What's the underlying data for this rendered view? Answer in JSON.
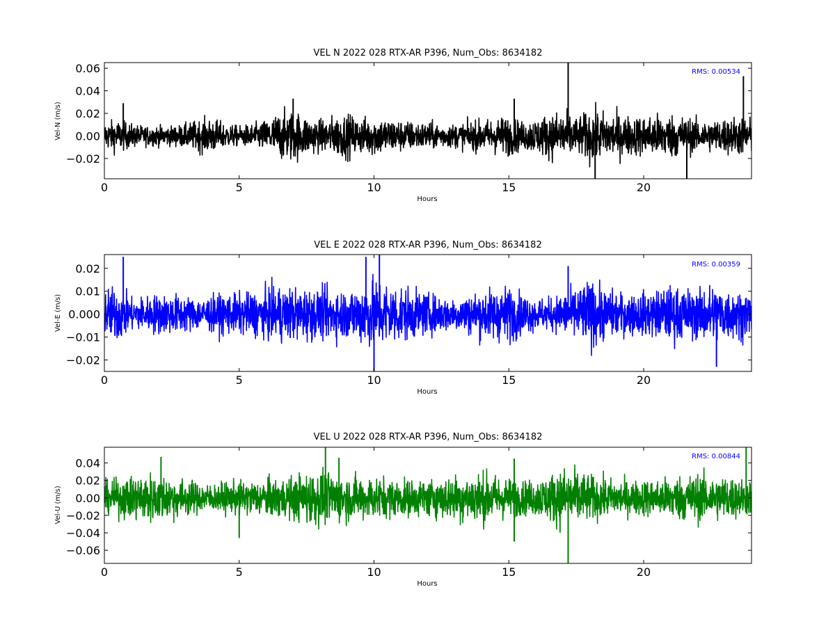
{
  "chart_data": [
    {
      "type": "line",
      "title": "VEL N 2022 028 RTX-AR  P396, Num_Obs: 8634182",
      "xlabel": "Hours",
      "ylabel": "Vel-N (m/s)",
      "xlim": [
        0,
        24
      ],
      "ylim": [
        -0.038,
        0.065
      ],
      "xticks": [
        0,
        5,
        10,
        15,
        20
      ],
      "xtick_labels": [
        "0",
        "5",
        "10",
        "15",
        "20"
      ],
      "yticks": [
        -0.02,
        0.0,
        0.02,
        0.04,
        0.06
      ],
      "ytick_labels": [
        "−0.02",
        "0.00",
        "0.02",
        "0.04",
        "0.06"
      ],
      "annotation": "RMS:  0.00534",
      "rms": 0.00534,
      "series_color": "#000000",
      "annotation_color": "#0000ff",
      "grid": false,
      "envelope": {
        "hours": [
          0,
          0.5,
          1,
          1.5,
          2,
          2.5,
          3,
          3.5,
          4,
          4.5,
          5,
          5.5,
          6,
          6.5,
          7,
          7.5,
          8,
          8.5,
          9,
          9.5,
          10,
          10.5,
          11,
          11.5,
          12,
          12.5,
          13,
          13.5,
          14,
          14.5,
          15,
          15.5,
          16,
          16.5,
          17,
          17.5,
          18,
          18.5,
          19,
          19.5,
          20,
          20.5,
          21,
          21.5,
          22,
          22.5,
          23,
          23.5,
          24
        ],
        "amplitude": [
          0.014,
          0.016,
          0.012,
          0.01,
          0.01,
          0.01,
          0.012,
          0.016,
          0.018,
          0.012,
          0.01,
          0.012,
          0.016,
          0.024,
          0.026,
          0.02,
          0.016,
          0.02,
          0.022,
          0.018,
          0.02,
          0.018,
          0.016,
          0.014,
          0.014,
          0.012,
          0.012,
          0.014,
          0.016,
          0.018,
          0.02,
          0.014,
          0.018,
          0.022,
          0.026,
          0.018,
          0.026,
          0.024,
          0.022,
          0.02,
          0.02,
          0.022,
          0.022,
          0.02,
          0.016,
          0.016,
          0.018,
          0.02,
          0.018
        ]
      },
      "spikes": [
        {
          "hour": 0.7,
          "value": 0.029
        },
        {
          "hour": 7.0,
          "value": 0.033
        },
        {
          "hour": 15.2,
          "value": 0.033
        },
        {
          "hour": 17.2,
          "value": 0.065
        },
        {
          "hour": 18.2,
          "value": -0.038
        },
        {
          "hour": 21.6,
          "value": -0.038
        },
        {
          "hour": 23.7,
          "value": 0.053
        }
      ]
    },
    {
      "type": "line",
      "title": "VEL E 2022 028 RTX-AR  P396, Num_Obs: 8634182",
      "xlabel": "Hours",
      "ylabel": "Vel-E (m/s)",
      "xlim": [
        0,
        24
      ],
      "ylim": [
        -0.025,
        0.026
      ],
      "xticks": [
        0,
        5,
        10,
        15,
        20
      ],
      "xtick_labels": [
        "0",
        "5",
        "10",
        "15",
        "20"
      ],
      "yticks": [
        -0.02,
        -0.01,
        0.0,
        0.01,
        0.02
      ],
      "ytick_labels": [
        "−0.02",
        "−0.01",
        "0.000",
        "0.01",
        "0.02"
      ],
      "annotation": "RMS:  0.00359",
      "rms": 0.00359,
      "series_color": "#0000ff",
      "annotation_color": "#0000ff",
      "grid": false,
      "envelope": {
        "hours": [
          0,
          0.5,
          1,
          1.5,
          2,
          2.5,
          3,
          3.5,
          4,
          4.5,
          5,
          5.5,
          6,
          6.5,
          7,
          7.5,
          8,
          8.5,
          9,
          9.5,
          10,
          10.5,
          11,
          11.5,
          12,
          12.5,
          13,
          13.5,
          14,
          14.5,
          15,
          15.5,
          16,
          16.5,
          17,
          17.5,
          18,
          18.5,
          19,
          19.5,
          20,
          20.5,
          21,
          21.5,
          22,
          22.5,
          23,
          23.5,
          24
        ],
        "amplitude": [
          0.012,
          0.014,
          0.008,
          0.009,
          0.01,
          0.01,
          0.009,
          0.008,
          0.009,
          0.01,
          0.01,
          0.011,
          0.012,
          0.014,
          0.013,
          0.013,
          0.012,
          0.013,
          0.012,
          0.015,
          0.018,
          0.016,
          0.014,
          0.012,
          0.01,
          0.009,
          0.008,
          0.01,
          0.012,
          0.013,
          0.014,
          0.01,
          0.008,
          0.008,
          0.01,
          0.013,
          0.017,
          0.013,
          0.011,
          0.01,
          0.011,
          0.012,
          0.014,
          0.013,
          0.012,
          0.015,
          0.013,
          0.012,
          0.012
        ]
      },
      "spikes": [
        {
          "hour": 0.7,
          "value": 0.025
        },
        {
          "hour": 9.7,
          "value": 0.025
        },
        {
          "hour": 10.2,
          "value": 0.026
        },
        {
          "hour": 10.0,
          "value": -0.025
        },
        {
          "hour": 17.2,
          "value": 0.021
        },
        {
          "hour": 22.7,
          "value": -0.023
        }
      ]
    },
    {
      "type": "line",
      "title": "VEL U 2022 028 RTX-AR  P396, Num_Obs: 8634182",
      "xlabel": "Hours",
      "ylabel": "Vel-U (m/s)",
      "xlim": [
        0,
        24
      ],
      "ylim": [
        -0.075,
        0.058
      ],
      "xticks": [
        0,
        5,
        10,
        15,
        20
      ],
      "xtick_labels": [
        "0",
        "5",
        "10",
        "15",
        "20"
      ],
      "yticks": [
        -0.06,
        -0.04,
        -0.02,
        0.0,
        0.02,
        0.04
      ],
      "ytick_labels": [
        "−0.06",
        "−0.04",
        "−0.02",
        "0.00",
        "0.02",
        "0.04"
      ],
      "annotation": "RMS:  0.00844",
      "rms": 0.00844,
      "series_color": "#008000",
      "annotation_color": "#0000ff",
      "grid": false,
      "envelope": {
        "hours": [
          0,
          0.5,
          1,
          1.5,
          2,
          2.5,
          3,
          3.5,
          4,
          4.5,
          5,
          5.5,
          6,
          6.5,
          7,
          7.5,
          8,
          8.5,
          9,
          9.5,
          10,
          10.5,
          11,
          11.5,
          12,
          12.5,
          13,
          13.5,
          14,
          14.5,
          15,
          15.5,
          16,
          16.5,
          17,
          17.5,
          18,
          18.5,
          19,
          19.5,
          20,
          20.5,
          21,
          21.5,
          22,
          22.5,
          23,
          23.5,
          24
        ],
        "amplitude": [
          0.02,
          0.024,
          0.028,
          0.034,
          0.03,
          0.028,
          0.024,
          0.02,
          0.018,
          0.02,
          0.022,
          0.022,
          0.024,
          0.026,
          0.028,
          0.034,
          0.036,
          0.032,
          0.03,
          0.028,
          0.028,
          0.026,
          0.024,
          0.024,
          0.024,
          0.026,
          0.03,
          0.032,
          0.034,
          0.03,
          0.026,
          0.022,
          0.024,
          0.03,
          0.04,
          0.036,
          0.03,
          0.026,
          0.024,
          0.022,
          0.024,
          0.024,
          0.028,
          0.03,
          0.032,
          0.028,
          0.03,
          0.026,
          0.022
        ]
      },
      "spikes": [
        {
          "hour": 2.1,
          "value": 0.047
        },
        {
          "hour": 5.0,
          "value": -0.046
        },
        {
          "hour": 8.2,
          "value": 0.058
        },
        {
          "hour": 8.7,
          "value": 0.046
        },
        {
          "hour": 15.2,
          "value": 0.045
        },
        {
          "hour": 15.2,
          "value": -0.05
        },
        {
          "hour": 17.2,
          "value": -0.075
        },
        {
          "hour": 23.8,
          "value": 0.058
        }
      ]
    }
  ]
}
